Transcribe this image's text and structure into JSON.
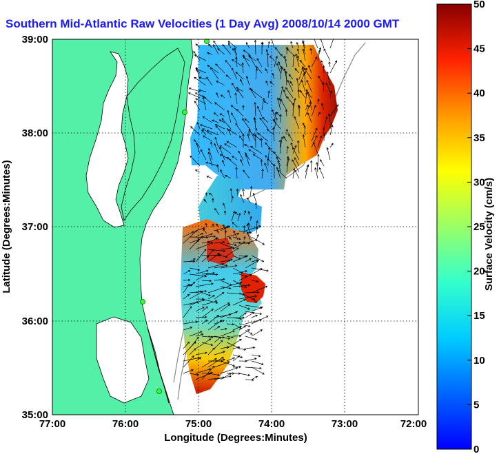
{
  "title": "Southern Mid-Atlantic Raw Velocities (1 Day Avg) 2008/10/14 2000 GMT",
  "map": {
    "xlabel": "Longitude (Degrees:Minutes)",
    "ylabel": "Latitude (Degrees:Minutes)",
    "x_ticks": [
      "77:00",
      "76:00",
      "75:00",
      "74:00",
      "73:00",
      "72:00"
    ],
    "y_ticks": [
      "39:00",
      "38:00",
      "37:00",
      "36:00",
      "35:00"
    ],
    "lon_range": [
      -77,
      -72
    ],
    "lat_range": [
      35,
      39
    ],
    "grid": true,
    "land_color": "#55f0a8",
    "sites": [
      {
        "lon": -74.85,
        "lat": 39.0
      },
      {
        "lon": -75.09,
        "lat": 38.22
      },
      {
        "lon": -75.95,
        "lat": 36.2
      },
      {
        "lon": -75.5,
        "lat": 35.25
      }
    ]
  },
  "colorbar": {
    "label": "Surface Velocity (cm/s)",
    "ticks": [
      "0",
      "5",
      "10",
      "15",
      "20",
      "25",
      "30",
      "35",
      "40",
      "45",
      "50"
    ],
    "range": [
      0,
      50
    ],
    "colormap": "jet"
  }
}
